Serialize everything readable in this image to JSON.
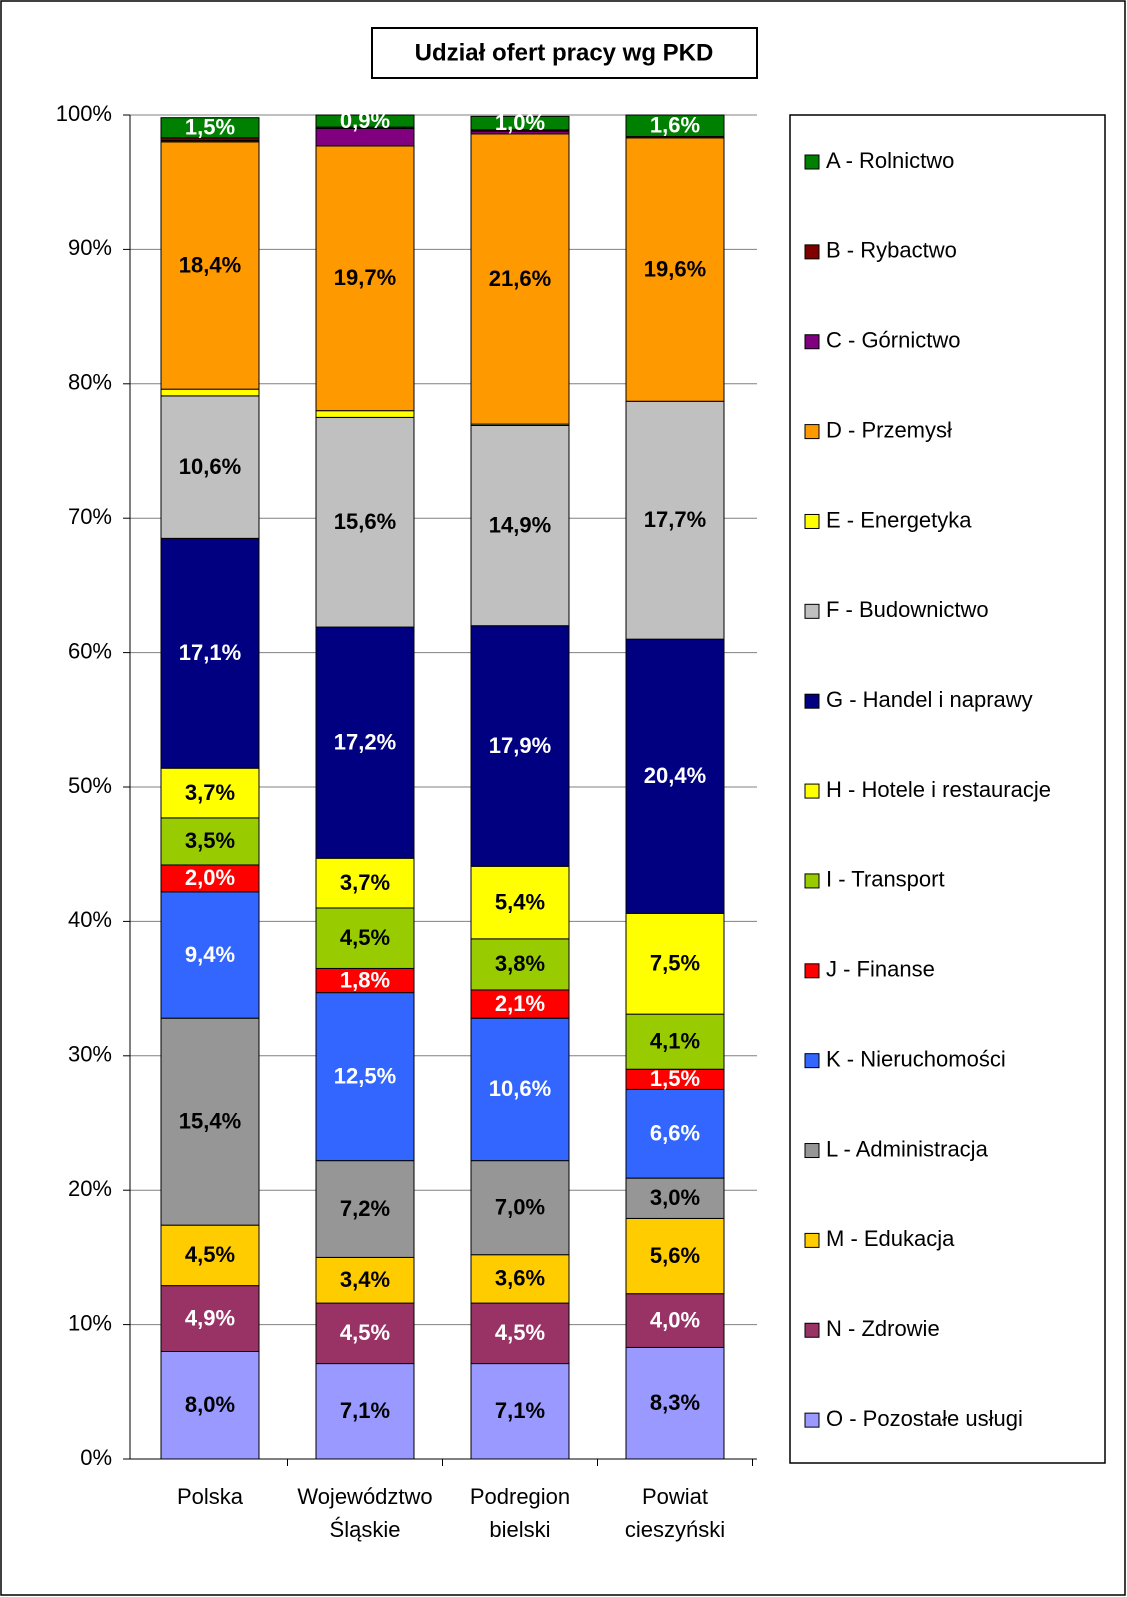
{
  "chart_data": {
    "type": "stacked_bar",
    "title": "Udział ofert pracy wg PKD",
    "categories": [
      "Polska",
      "Województwo Śląskie",
      "Podregion bielski",
      "Powiat cieszyński"
    ],
    "ylim": [
      0,
      100
    ],
    "yticks": [
      {
        "value": 0,
        "label": "0%"
      },
      {
        "value": 10,
        "label": "10%"
      },
      {
        "value": 20,
        "label": "20%"
      },
      {
        "value": 30,
        "label": "30%"
      },
      {
        "value": 40,
        "label": "40%"
      },
      {
        "value": 50,
        "label": "50%"
      },
      {
        "value": 60,
        "label": "60%"
      },
      {
        "value": 70,
        "label": "70%"
      },
      {
        "value": 80,
        "label": "80%"
      },
      {
        "value": 90,
        "label": "90%"
      },
      {
        "value": 100,
        "label": "100%"
      }
    ],
    "grid": true,
    "legend": "right",
    "series": [
      {
        "name": "O - Pozostałe usługi",
        "color": "#9999ff",
        "values": [
          8.0,
          7.1,
          7.1,
          8.3
        ],
        "value_labels": [
          "8,0%",
          "7,1%",
          "7,1%",
          "8,3%"
        ]
      },
      {
        "name": "N - Zdrowie",
        "color": "#993366",
        "values": [
          4.9,
          4.5,
          4.5,
          4.0
        ],
        "value_labels": [
          "4,9%",
          "4,5%",
          "4,5%",
          "4,0%"
        ]
      },
      {
        "name": "M - Edukacja",
        "color": "#ffcc00",
        "values": [
          4.5,
          3.4,
          3.6,
          5.6
        ],
        "value_labels": [
          "4,5%",
          "3,4%",
          "3,6%",
          "5,6%"
        ]
      },
      {
        "name": "L - Administracja",
        "color": "#969696",
        "values": [
          15.4,
          7.2,
          7.0,
          3.0
        ],
        "value_labels": [
          "15,4%",
          "7,2%",
          "7,0%",
          "3,0%"
        ]
      },
      {
        "name": "K - Nieruchomości",
        "color": "#3366ff",
        "values": [
          9.4,
          12.5,
          10.6,
          6.6
        ],
        "value_labels": [
          "9,4%",
          "12,5%",
          "10,6%",
          "6,6%"
        ]
      },
      {
        "name": "J - Finanse",
        "color": "#ff0000",
        "values": [
          2.0,
          1.8,
          2.1,
          1.5
        ],
        "value_labels": [
          "2,0%",
          "1,8%",
          "2,1%",
          "1,5%"
        ]
      },
      {
        "name": "I - Transport",
        "color": "#99cc00",
        "values": [
          3.5,
          4.5,
          3.8,
          4.1
        ],
        "value_labels": [
          "3,5%",
          "4,5%",
          "3,8%",
          "4,1%"
        ]
      },
      {
        "name": "H - Hotele i restauracje",
        "color": "#ffff00",
        "values": [
          3.7,
          3.7,
          5.4,
          7.5
        ],
        "value_labels": [
          "3,7%",
          "3,7%",
          "5,4%",
          "7,5%"
        ]
      },
      {
        "name": "G - Handel i naprawy",
        "color": "#000080",
        "values": [
          17.1,
          17.2,
          17.9,
          20.4
        ],
        "value_labels": [
          "17,1%",
          "17,2%",
          "17,9%",
          "20,4%"
        ]
      },
      {
        "name": "F - Budownictwo",
        "color": "#c0c0c0",
        "values": [
          10.6,
          15.6,
          14.9,
          17.7
        ],
        "value_labels": [
          "10,6%",
          "15,6%",
          "14,9%",
          "17,7%"
        ]
      },
      {
        "name": "E - Energetyka",
        "color": "#ffff00",
        "values": [
          0.5,
          0.5,
          0.1,
          0
        ],
        "value_labels": [
          null,
          null,
          null,
          null
        ]
      },
      {
        "name": "D - Przemysł",
        "color": "#ff9900",
        "values": [
          18.4,
          19.7,
          21.6,
          19.6
        ],
        "value_labels": [
          "18,4%",
          "19,7%",
          "21,6%",
          "19,6%"
        ]
      },
      {
        "name": "C - Górnictwo",
        "color": "#800080",
        "values": [
          0.1,
          1.3,
          0.2,
          0
        ],
        "value_labels": [
          null,
          null,
          null,
          null
        ]
      },
      {
        "name": "B - Rybactwo",
        "color": "#800000",
        "values": [
          0.2,
          0.1,
          0.1,
          0.1
        ],
        "value_labels": [
          null,
          null,
          null,
          null
        ]
      },
      {
        "name": "A - Rolnictwo",
        "color": "#008000",
        "values": [
          1.5,
          0.9,
          1.0,
          1.6
        ],
        "value_labels": [
          "1,5%",
          "0,9%",
          "1,0%",
          "1,6%"
        ]
      }
    ]
  }
}
